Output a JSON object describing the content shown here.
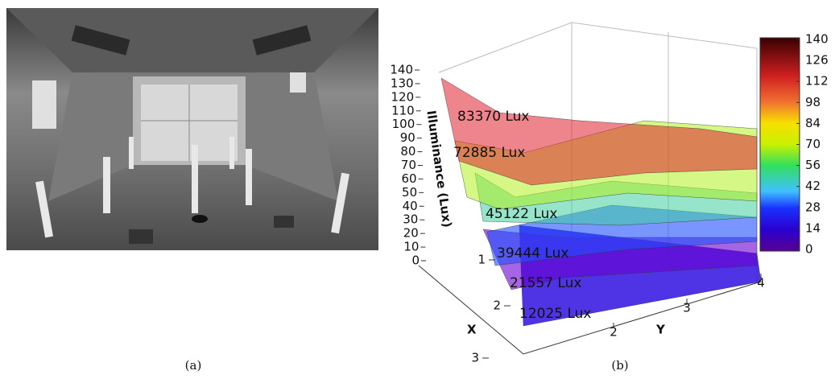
{
  "panel_a": {
    "caption": "(a)"
  },
  "panel_b": {
    "caption": "(b)",
    "z_label": "Illuminance (Lux)",
    "x_label": "X",
    "y_label": "Y",
    "zlim": [
      0,
      140
    ],
    "zticks": [
      0,
      10,
      20,
      30,
      40,
      50,
      60,
      70,
      80,
      90,
      100,
      110,
      120,
      130,
      140
    ],
    "xticks": [
      1,
      2,
      3
    ],
    "yticks": [
      2,
      3,
      4
    ],
    "colorbar_lim": [
      0,
      140
    ],
    "colorbar_ticks": [
      0,
      14,
      28,
      42,
      56,
      70,
      84,
      98,
      112,
      126,
      140
    ],
    "layers": [
      "83370 Lux",
      "72885 Lux",
      "45122 Lux",
      "39444 Lux",
      "21557 Lux",
      "12025 Lux"
    ]
  }
}
